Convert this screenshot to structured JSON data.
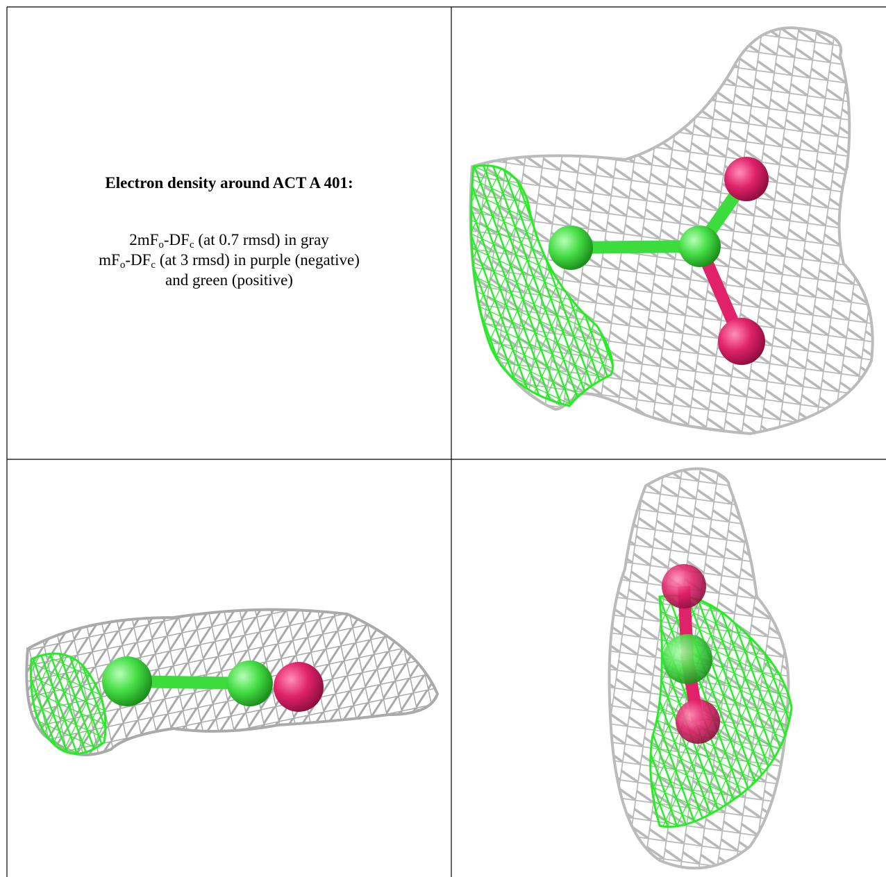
{
  "caption": {
    "title": "Electron density around ACT A 401:",
    "lines": [
      [
        "2mF",
        "o",
        "-DF",
        "c",
        " (at 0.7 rmsd) in gray"
      ],
      [
        "mF",
        "o",
        "-DF",
        "c",
        " (at 3 rmsd) in purple (negative)"
      ],
      [
        "and green (positive)"
      ]
    ]
  }
}
